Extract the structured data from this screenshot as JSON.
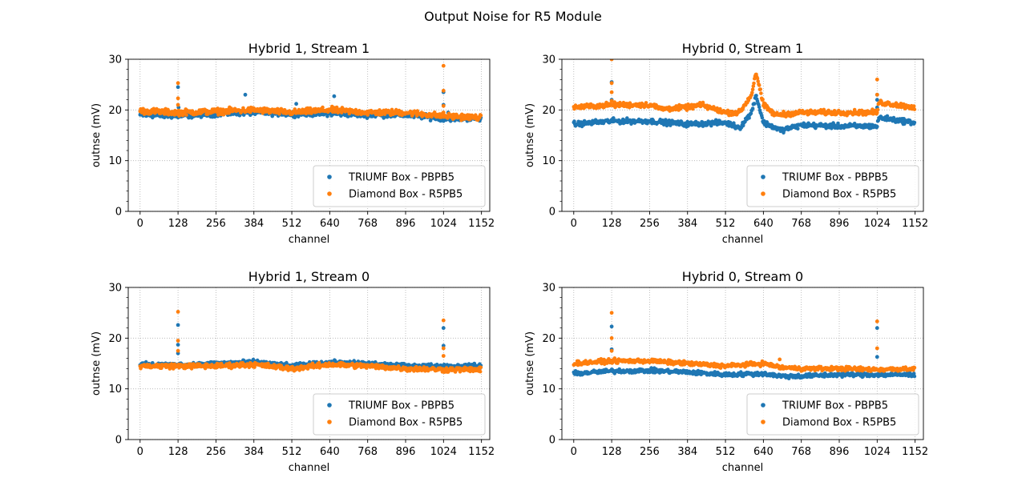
{
  "figure": {
    "suptitle": "Output Noise for R5 Module"
  },
  "legend": [
    "TRIUMF Box - PBPB5",
    "Diamond Box - R5PB5"
  ],
  "colors": {
    "series0": "#1f77b4",
    "series1": "#ff7f0e",
    "grid": "#b0b0b0"
  },
  "chart_data": [
    {
      "type": "scatter",
      "title": "Hybrid 1, Stream 1",
      "xlabel": "channel",
      "ylabel": "outnse (mV)",
      "xlim": [
        -40,
        1180
      ],
      "ylim": [
        0,
        30
      ],
      "xticks": [
        0,
        128,
        256,
        384,
        512,
        640,
        768,
        896,
        1024,
        1152
      ],
      "yticks": [
        0,
        10,
        20,
        30
      ],
      "grid": true,
      "legend_position": "lower-right",
      "x_range": [
        0,
        1151
      ],
      "series": [
        {
          "name": "TRIUMF Box - PBPB5",
          "baseline": [
            [
              0,
              19.0
            ],
            [
              128,
              18.8
            ],
            [
              256,
              19.2
            ],
            [
              384,
              19.5
            ],
            [
              512,
              19.2
            ],
            [
              640,
              19.3
            ],
            [
              768,
              19.0
            ],
            [
              896,
              19.0
            ],
            [
              1024,
              18.3
            ],
            [
              1151,
              18.3
            ]
          ],
          "noise": 0.6,
          "outliers": [
            [
              128,
              24.5
            ],
            [
              130,
              18.8
            ],
            [
              130,
              20.5
            ],
            [
              355,
              23.0
            ],
            [
              527,
              21.2
            ],
            [
              655,
              22.7
            ],
            [
              1024,
              23.5
            ],
            [
              1024,
              21.0
            ],
            [
              1040,
              19.5
            ]
          ]
        },
        {
          "name": "Diamond Box - R5PB5",
          "baseline": [
            [
              0,
              19.8
            ],
            [
              128,
              19.5
            ],
            [
              256,
              19.7
            ],
            [
              384,
              20.0
            ],
            [
              512,
              19.5
            ],
            [
              640,
              20.0
            ],
            [
              768,
              19.5
            ],
            [
              896,
              19.5
            ],
            [
              1024,
              18.8
            ],
            [
              1151,
              18.5
            ]
          ],
          "noise": 0.7,
          "outliers": [
            [
              128,
              25.3
            ],
            [
              128,
              22.3
            ],
            [
              128,
              21.0
            ],
            [
              1024,
              28.7
            ],
            [
              1024,
              23.8
            ],
            [
              1024,
              20.8
            ],
            [
              1024,
              19.5
            ]
          ]
        }
      ]
    },
    {
      "type": "scatter",
      "title": "Hybrid 0, Stream 1",
      "xlabel": "channel",
      "ylabel": "outnse (mV)",
      "xlim": [
        -40,
        1180
      ],
      "ylim": [
        0,
        30
      ],
      "xticks": [
        0,
        128,
        256,
        384,
        512,
        640,
        768,
        896,
        1024,
        1152
      ],
      "yticks": [
        0,
        10,
        20,
        30
      ],
      "grid": true,
      "legend_position": "lower-right",
      "x_range": [
        0,
        1151
      ],
      "series": [
        {
          "name": "TRIUMF Box - PBPB5",
          "baseline": [
            [
              0,
              17.2
            ],
            [
              128,
              17.8
            ],
            [
              256,
              17.8
            ],
            [
              384,
              17.2
            ],
            [
              512,
              17.5
            ],
            [
              560,
              16.5
            ],
            [
              600,
              19.5
            ],
            [
              615,
              23.0
            ],
            [
              640,
              17.5
            ],
            [
              700,
              16.0
            ],
            [
              768,
              17.0
            ],
            [
              896,
              16.8
            ],
            [
              1024,
              16.8
            ],
            [
              1030,
              18.5
            ],
            [
              1151,
              17.5
            ]
          ],
          "noise": 0.6,
          "outliers": [
            [
              128,
              25.5
            ],
            [
              128,
              22.0
            ],
            [
              1024,
              23.0
            ],
            [
              1024,
              22.0
            ],
            [
              1024,
              20.5
            ]
          ]
        },
        {
          "name": "Diamond Box - R5PB5",
          "baseline": [
            [
              0,
              20.5
            ],
            [
              128,
              21.0
            ],
            [
              256,
              21.0
            ],
            [
              300,
              20.2
            ],
            [
              384,
              20.5
            ],
            [
              430,
              21.0
            ],
            [
              512,
              19.5
            ],
            [
              560,
              19.5
            ],
            [
              600,
              23.0
            ],
            [
              615,
              27.5
            ],
            [
              640,
              21.0
            ],
            [
              680,
              19.0
            ],
            [
              768,
              19.5
            ],
            [
              896,
              19.5
            ],
            [
              1024,
              19.5
            ],
            [
              1030,
              21.5
            ],
            [
              1151,
              20.5
            ]
          ],
          "noise": 0.6,
          "outliers": [
            [
              128,
              30.0
            ],
            [
              128,
              25.3
            ],
            [
              128,
              23.5
            ],
            [
              128,
              21.8
            ],
            [
              1024,
              26.0
            ],
            [
              1024,
              23.0
            ]
          ]
        }
      ]
    },
    {
      "type": "scatter",
      "title": "Hybrid 1, Stream 0",
      "xlabel": "channel",
      "ylabel": "outnse (mV)",
      "xlim": [
        -40,
        1180
      ],
      "ylim": [
        0,
        30
      ],
      "xticks": [
        0,
        128,
        256,
        384,
        512,
        640,
        768,
        896,
        1024,
        1152
      ],
      "yticks": [
        0,
        10,
        20,
        30
      ],
      "grid": true,
      "legend_position": "lower-right",
      "x_range": [
        0,
        1151
      ],
      "series": [
        {
          "name": "TRIUMF Box - PBPB5",
          "baseline": [
            [
              0,
              14.8
            ],
            [
              128,
              14.7
            ],
            [
              256,
              15.0
            ],
            [
              384,
              15.3
            ],
            [
              512,
              14.5
            ],
            [
              640,
              15.2
            ],
            [
              768,
              15.0
            ],
            [
              896,
              14.5
            ],
            [
              1024,
              14.5
            ],
            [
              1151,
              14.5
            ]
          ],
          "noise": 0.5,
          "outliers": [
            [
              128,
              22.6
            ],
            [
              128,
              18.7
            ],
            [
              128,
              17.0
            ],
            [
              1024,
              22.0
            ],
            [
              1024,
              18.5
            ]
          ]
        },
        {
          "name": "Diamond Box - R5PB5",
          "baseline": [
            [
              0,
              14.5
            ],
            [
              128,
              14.5
            ],
            [
              256,
              14.5
            ],
            [
              384,
              14.8
            ],
            [
              512,
              14.0
            ],
            [
              640,
              14.8
            ],
            [
              768,
              14.5
            ],
            [
              896,
              14.0
            ],
            [
              1024,
              13.8
            ],
            [
              1151,
              13.8
            ]
          ],
          "noise": 0.6,
          "outliers": [
            [
              128,
              25.2
            ],
            [
              128,
              19.5
            ],
            [
              128,
              17.5
            ],
            [
              1024,
              23.5
            ],
            [
              1024,
              18.0
            ],
            [
              1024,
              16.5
            ]
          ]
        }
      ]
    },
    {
      "type": "scatter",
      "title": "Hybrid 0, Stream 0",
      "xlabel": "channel",
      "ylabel": "outnse (mV)",
      "xlim": [
        -40,
        1180
      ],
      "ylim": [
        0,
        30
      ],
      "xticks": [
        0,
        128,
        256,
        384,
        512,
        640,
        768,
        896,
        1024,
        1152
      ],
      "yticks": [
        0,
        10,
        20,
        30
      ],
      "grid": true,
      "legend_position": "lower-right",
      "x_range": [
        0,
        1151
      ],
      "series": [
        {
          "name": "TRIUMF Box - PBPB5",
          "baseline": [
            [
              0,
              13.0
            ],
            [
              128,
              13.5
            ],
            [
              256,
              13.6
            ],
            [
              384,
              13.3
            ],
            [
              512,
              12.8
            ],
            [
              640,
              13.0
            ],
            [
              700,
              12.5
            ],
            [
              768,
              12.5
            ],
            [
              896,
              12.8
            ],
            [
              1024,
              12.8
            ],
            [
              1151,
              12.8
            ]
          ],
          "noise": 0.5,
          "outliers": [
            [
              128,
              22.3
            ],
            [
              128,
              17.8
            ],
            [
              1024,
              22.0
            ],
            [
              1024,
              16.3
            ]
          ]
        },
        {
          "name": "Diamond Box - R5PB5",
          "baseline": [
            [
              0,
              15.0
            ],
            [
              128,
              15.5
            ],
            [
              256,
              15.5
            ],
            [
              384,
              15.0
            ],
            [
              512,
              14.5
            ],
            [
              640,
              15.0
            ],
            [
              700,
              14.2
            ],
            [
              768,
              14.0
            ],
            [
              896,
              14.0
            ],
            [
              1024,
              13.8
            ],
            [
              1151,
              14.0
            ]
          ],
          "noise": 0.5,
          "outliers": [
            [
              128,
              25.0
            ],
            [
              128,
              20.0
            ],
            [
              128,
              17.5
            ],
            [
              695,
              15.8
            ],
            [
              1024,
              23.3
            ],
            [
              1024,
              18.0
            ]
          ]
        }
      ]
    }
  ]
}
